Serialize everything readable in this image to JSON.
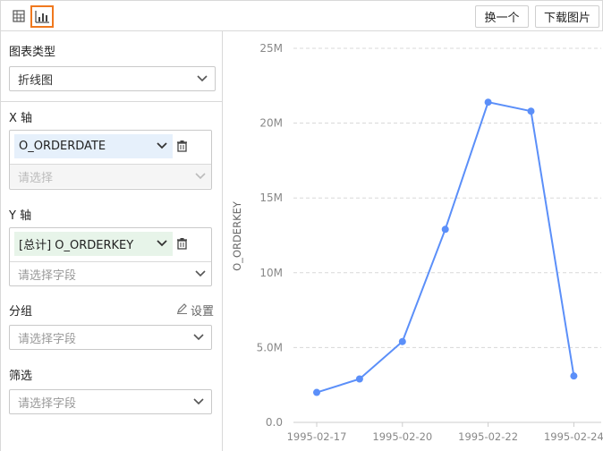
{
  "toolbar": {
    "swap_label": "换一个",
    "download_label": "下载图片",
    "accent_color": "#f0781e"
  },
  "panel": {
    "chart_type": {
      "label": "图表类型",
      "value": "折线图"
    },
    "x_axis": {
      "label": "X 轴",
      "field": "O_ORDERDATE",
      "sub_placeholder": "请选择"
    },
    "y_axis": {
      "label": "Y 轴",
      "field": "[总计] O_ORDERKEY",
      "sub_placeholder": "请选择字段"
    },
    "group": {
      "label": "分组",
      "settings_label": "设置",
      "placeholder": "请选择字段"
    },
    "filter": {
      "label": "筛选",
      "placeholder": "请选择字段"
    }
  },
  "chart_data": {
    "type": "line",
    "x_tick_labels": [
      "1995-02-17",
      "1995-02-20",
      "1995-02-22",
      "1995-02-24"
    ],
    "x_index_of_ticks": [
      0,
      2,
      4,
      6
    ],
    "y_tick_labels": [
      "0.0",
      "5.0M",
      "10M",
      "15M",
      "20M",
      "25M"
    ],
    "y_ticks": [
      0,
      5000000,
      10000000,
      15000000,
      20000000,
      25000000
    ],
    "ylim": [
      0,
      25000000
    ],
    "ylabel": "O_ORDERKEY",
    "series": [
      {
        "values": [
          2000000,
          2900000,
          5400000,
          12900000,
          21400000,
          20800000,
          3100000
        ],
        "color": "#5b8ff9"
      }
    ],
    "grid": true
  }
}
